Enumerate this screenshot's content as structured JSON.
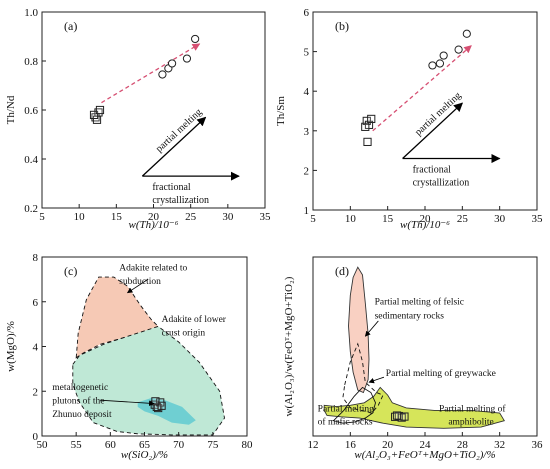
{
  "colors": {
    "axis": "#222222",
    "trend_arrow": "#d64f72",
    "arrow": "#000000",
    "adakite_subduction": "#f6c9b5",
    "adakite_lower_crust": "#bfe8d6",
    "zhunuo_plutons": "#6fcfd2",
    "felsic_sedimentary": "#f9d0c2",
    "amphibolite": "#d6e55a"
  },
  "chart_data": [
    {
      "panel": "(a)",
      "type": "scatter",
      "xlabel": "w(Th)/10⁻⁶",
      "ylabel": "Th/Nd",
      "xlim": [
        5,
        35
      ],
      "ylim": [
        0.2,
        1.0
      ],
      "xticks": [
        "5",
        "10",
        "15",
        "20",
        "25",
        "30",
        "35"
      ],
      "yticks": [
        "0.2",
        "0.4",
        "0.6",
        "0.8",
        "1.0"
      ],
      "series": [
        {
          "marker": "square",
          "points": [
            [
              12.2,
              0.57
            ],
            [
              12.4,
              0.56
            ],
            [
              12.6,
              0.59
            ],
            [
              12.0,
              0.58
            ],
            [
              12.8,
              0.6
            ]
          ]
        },
        {
          "marker": "circle",
          "points": [
            [
              21.2,
              0.745
            ],
            [
              22.0,
              0.77
            ],
            [
              22.5,
              0.79
            ],
            [
              24.5,
              0.81
            ],
            [
              25.6,
              0.89
            ]
          ]
        }
      ],
      "trend_arrow": [
        [
          13.0,
          0.63
        ],
        [
          26.2,
          0.87
        ]
      ],
      "arrows": [
        {
          "label": "partial melting",
          "from": [
            18.5,
            0.33
          ],
          "to": [
            27.0,
            0.57
          ]
        },
        {
          "label": "fractional crystallization",
          "from": [
            18.5,
            0.33
          ],
          "to": [
            31.5,
            0.33
          ]
        }
      ]
    },
    {
      "panel": "(b)",
      "type": "scatter",
      "xlabel": "w(Th)/10⁻⁶",
      "ylabel": "Th/Sm",
      "xlim": [
        5,
        35
      ],
      "ylim": [
        1,
        6
      ],
      "xticks": [
        "5",
        "10",
        "15",
        "20",
        "25",
        "30",
        "35"
      ],
      "yticks": [
        "1",
        "2",
        "3",
        "4",
        "5",
        "6"
      ],
      "series": [
        {
          "marker": "square",
          "points": [
            [
              12.2,
              3.25
            ],
            [
              12.5,
              3.15
            ],
            [
              12.0,
              3.1
            ],
            [
              12.8,
              3.3
            ],
            [
              12.3,
              2.72
            ]
          ]
        },
        {
          "marker": "circle",
          "points": [
            [
              21.0,
              4.65
            ],
            [
              22.0,
              4.7
            ],
            [
              22.5,
              4.9
            ],
            [
              24.5,
              5.05
            ],
            [
              25.6,
              5.45
            ]
          ]
        }
      ],
      "trend_arrow": [
        [
          13.0,
          3.0
        ],
        [
          26.2,
          5.15
        ]
      ],
      "arrows": [
        {
          "label": "partial melting",
          "from": [
            17.0,
            2.3
          ],
          "to": [
            25.0,
            3.7
          ]
        },
        {
          "label": "fractional crystallization",
          "from": [
            17.0,
            2.3
          ],
          "to": [
            30.0,
            2.3
          ]
        }
      ]
    },
    {
      "panel": "(c)",
      "type": "scatter",
      "xlabel": "w(SiO₂)/%",
      "ylabel": "w(MgO)/%",
      "xlim": [
        50,
        80
      ],
      "ylim": [
        0,
        8
      ],
      "xticks": [
        "50",
        "55",
        "60",
        "65",
        "70",
        "75",
        "80"
      ],
      "yticks": [
        "0",
        "2",
        "4",
        "6",
        "8"
      ],
      "fields": [
        {
          "label": "Adakite related to subduction",
          "polygon": [
            [
              55,
              3.5
            ],
            [
              55.3,
              4.6
            ],
            [
              56.5,
              6.1
            ],
            [
              58.3,
              7.1
            ],
            [
              60.5,
              7.1
            ],
            [
              62.5,
              6.7
            ],
            [
              64.5,
              5.8
            ],
            [
              66,
              5.2
            ],
            [
              67,
              4.9
            ],
            [
              65,
              4.6
            ],
            [
              62,
              4.4
            ],
            [
              58.5,
              4.1
            ],
            [
              56,
              3.7
            ]
          ]
        },
        {
          "label": "Adakite of lower crust origin",
          "polygon": [
            [
              54.5,
              3.2
            ],
            [
              55.5,
              3.6
            ],
            [
              59,
              4.1
            ],
            [
              63,
              4.5
            ],
            [
              67,
              4.9
            ],
            [
              70,
              4.2
            ],
            [
              73,
              3.3
            ],
            [
              76,
              2.0
            ],
            [
              76.7,
              0.8
            ],
            [
              75,
              0.05
            ],
            [
              69,
              0.05
            ],
            [
              64,
              0.1
            ],
            [
              61,
              0.2
            ],
            [
              57.5,
              0.6
            ],
            [
              55.5,
              1.5
            ],
            [
              54.5,
              2.3
            ]
          ]
        },
        {
          "label": "metallogenetic plutons of the Zhunuo deposit",
          "polygon": [
            [
              64,
              1.5
            ],
            [
              66,
              1.7
            ],
            [
              68,
              1.6
            ],
            [
              70.5,
              1.3
            ],
            [
              72.5,
              0.7
            ],
            [
              71.5,
              0.5
            ],
            [
              69,
              0.6
            ],
            [
              67,
              0.9
            ],
            [
              65,
              1.1
            ],
            [
              64,
              1.3
            ]
          ]
        }
      ],
      "series": [
        {
          "marker": "square",
          "points": [
            [
              66.5,
              1.4
            ],
            [
              67,
              1.25
            ],
            [
              67.3,
              1.5
            ],
            [
              66.8,
              1.3
            ],
            [
              67.5,
              1.35
            ],
            [
              66.6,
              1.55
            ]
          ]
        }
      ],
      "annotations": [
        {
          "text": "Adakite related to",
          "at": [
            61.3,
            7.4
          ]
        },
        {
          "text": "subduction",
          "at": [
            61.3,
            6.8
          ]
        },
        {
          "text": "Adakite of lower",
          "at": [
            67.5,
            5.1
          ]
        },
        {
          "text": "crust origin",
          "at": [
            67.5,
            4.5
          ]
        },
        {
          "text": "metallogenetic",
          "at": [
            51.5,
            2.05
          ]
        },
        {
          "text": "plutons of the",
          "at": [
            51.5,
            1.45
          ]
        },
        {
          "text": "Zhunuo deposit",
          "at": [
            51.5,
            0.85
          ]
        }
      ]
    },
    {
      "panel": "(d)",
      "type": "scatter",
      "xlabel": "w(Al₂O₃+FeOᵀ+MgO+TiO₂)/%",
      "ylabel": "w(Al₂O₃)/w(FeOᵀ+MgO+TiO₂)",
      "xlim": [
        12,
        36
      ],
      "ylim": [
        0,
        7
      ],
      "xticks": [
        "12",
        "16",
        "20",
        "24",
        "28",
        "32",
        "36"
      ],
      "yticks": [],
      "fields": [
        {
          "label": "Partial melting of felsic sedimentary rocks",
          "polygon": [
            [
              15.8,
              4.3
            ],
            [
              16.0,
              5.5
            ],
            [
              16.3,
              6.2
            ],
            [
              16.8,
              6.6
            ],
            [
              17.3,
              6.3
            ],
            [
              17.6,
              5.2
            ],
            [
              17.9,
              4.0
            ],
            [
              18.0,
              3.0
            ],
            [
              17.9,
              2.2
            ],
            [
              17.4,
              1.7
            ],
            [
              16.8,
              1.8
            ],
            [
              16.3,
              2.5
            ],
            [
              16.0,
              3.3
            ]
          ]
        },
        {
          "label": "Partial melting of amphibolite",
          "polygon": [
            [
              13.2,
              1.2
            ],
            [
              14.5,
              1.15
            ],
            [
              16,
              1.2
            ],
            [
              17.5,
              1.3
            ],
            [
              18.5,
              1.55
            ],
            [
              19.2,
              1.9
            ],
            [
              20,
              1.6
            ],
            [
              20.5,
              1.3
            ],
            [
              22,
              1.1
            ],
            [
              25,
              1.0
            ],
            [
              29,
              1.0
            ],
            [
              32,
              0.9
            ],
            [
              32.5,
              0.6
            ],
            [
              30,
              0.35
            ],
            [
              26,
              0.3
            ],
            [
              22,
              0.35
            ],
            [
              19.5,
              0.5
            ],
            [
              17,
              0.7
            ],
            [
              15,
              0.75
            ],
            [
              13.5,
              0.8
            ],
            [
              13.2,
              1.0
            ]
          ]
        },
        {
          "label": "Partial melting of greywacke",
          "outline": "dashed",
          "polygon": [
            [
              15.4,
              2.0
            ],
            [
              16.0,
              2.9
            ],
            [
              16.8,
              3.6
            ],
            [
              17.3,
              2.9
            ],
            [
              17.6,
              2.1
            ],
            [
              18.8,
              1.7
            ],
            [
              19.5,
              1.6
            ],
            [
              19.0,
              1.2
            ],
            [
              18.3,
              0.9
            ],
            [
              17.2,
              1.0
            ],
            [
              16.0,
              1.1
            ],
            [
              15.2,
              1.5
            ]
          ]
        },
        {
          "label": "Partial melting of mafic rocks",
          "outline": "solid",
          "polygon": [
            [
              14.2,
              0.6
            ],
            [
              15.3,
              1.0
            ],
            [
              16.4,
              1.55
            ],
            [
              17.3,
              1.9
            ],
            [
              18.2,
              1.7
            ],
            [
              18.7,
              1.3
            ],
            [
              18.4,
              0.9
            ],
            [
              17.6,
              0.7
            ],
            [
              16.5,
              0.55
            ],
            [
              15.2,
              0.5
            ]
          ]
        }
      ],
      "series": [
        {
          "marker": "square",
          "points": [
            [
              20.8,
              0.75
            ],
            [
              21.2,
              0.78
            ],
            [
              21.5,
              0.72
            ],
            [
              21.0,
              0.8
            ],
            [
              21.8,
              0.76
            ]
          ]
        }
      ],
      "annotations": [
        {
          "text": "Partial melting of felsic",
          "at": [
            18.6,
            5.15
          ]
        },
        {
          "text": "sedimentary rocks",
          "at": [
            18.6,
            4.6
          ]
        },
        {
          "text": "Partial melting of greywacke",
          "at": [
            19.8,
            2.35
          ]
        },
        {
          "text": "Partial melting",
          "at": [
            12.5,
            0.95
          ]
        },
        {
          "text": "of mafic rocks",
          "at": [
            12.5,
            0.45
          ]
        },
        {
          "text": "Partial melting of",
          "at": [
            25.5,
            0.95
          ]
        },
        {
          "text": "amphibolite",
          "at": [
            26.5,
            0.45
          ]
        }
      ]
    }
  ]
}
